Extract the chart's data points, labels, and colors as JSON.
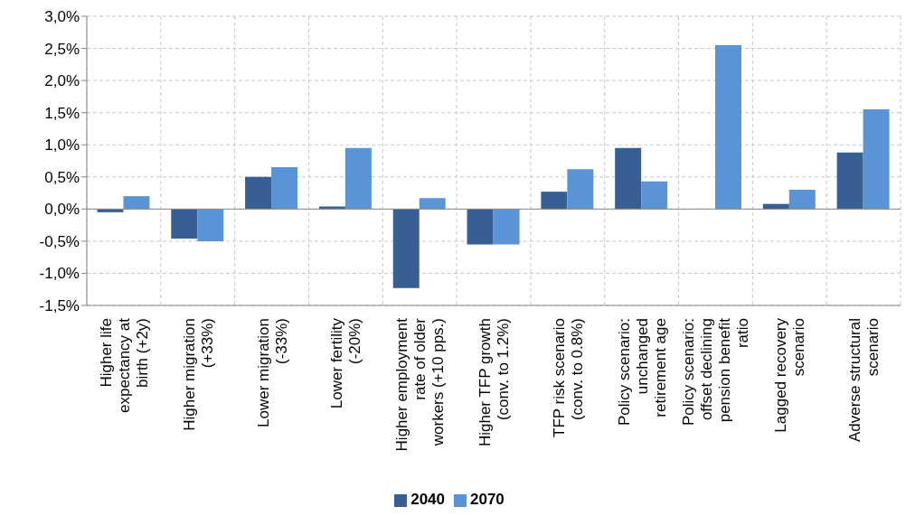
{
  "chart_data": {
    "type": "bar",
    "categories": [
      "Higher life expectancy at birth (+2y)",
      "Higher migration (+33%)",
      "Lower migration (-33%)",
      "Lower fertility (-20%)",
      "Higher employment rate of older workers (+10 pps.)",
      "Higher TFP growth (conv. to 1.2%)",
      "TFP risk scenario (conv. to 0.8%)",
      "Policy scenario: unchanged retirement age",
      "Policy scenario: offset declining pension benefit ratio",
      "Lagged recovery scenario",
      "Adverse structural scenario"
    ],
    "series": [
      {
        "name": "2040",
        "color": "#375f93",
        "values": [
          -0.05,
          -0.46,
          0.5,
          0.04,
          -1.23,
          -0.55,
          0.27,
          0.95,
          null,
          0.08,
          0.88
        ]
      },
      {
        "name": "2070",
        "color": "#5a93d6",
        "values": [
          0.2,
          -0.5,
          0.65,
          0.95,
          0.17,
          -0.55,
          0.62,
          0.43,
          2.55,
          0.3,
          1.55
        ]
      }
    ],
    "ylim": [
      -1.5,
      3.0
    ],
    "yticks": [
      {
        "value": -1.5,
        "label": "-1,5%"
      },
      {
        "value": -1.0,
        "label": "-1,0%"
      },
      {
        "value": -0.5,
        "label": "-0,5%"
      },
      {
        "value": 0,
        "label": "0,0%"
      },
      {
        "value": 0.5,
        "label": "0,5%"
      },
      {
        "value": 1.0,
        "label": "1,0%"
      },
      {
        "value": 1.5,
        "label": "1,5%"
      },
      {
        "value": 2.0,
        "label": "2,0%"
      },
      {
        "value": 2.5,
        "label": "2,5%"
      },
      {
        "value": 3.0,
        "label": "3,0%"
      }
    ],
    "grid": true,
    "legend": "bottom"
  }
}
